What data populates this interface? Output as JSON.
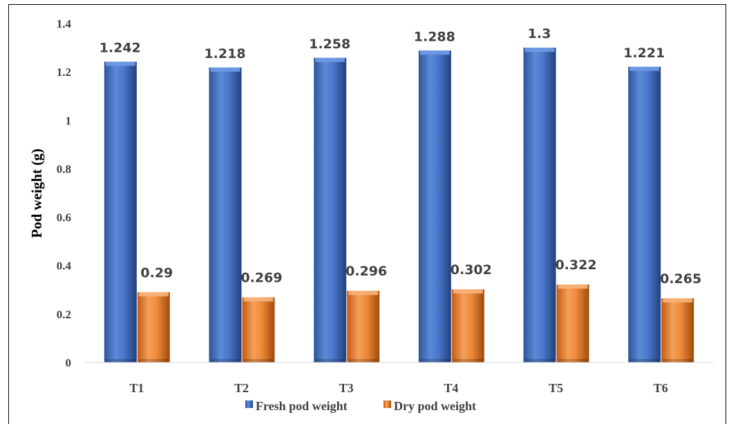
{
  "chart_data": {
    "type": "bar",
    "categories": [
      "T1",
      "T2",
      "T3",
      "T4",
      "T5",
      "T6"
    ],
    "series": [
      {
        "name": "Fresh pod weight",
        "values": [
          1.242,
          1.218,
          1.258,
          1.288,
          1.3,
          1.221
        ],
        "labels": [
          "1.242",
          "1.218",
          "1.258",
          "1.288",
          "1.3",
          "1.221"
        ],
        "color": "#4472C4"
      },
      {
        "name": "Dry pod weight",
        "values": [
          0.29,
          0.269,
          0.296,
          0.302,
          0.322,
          0.265
        ],
        "labels": [
          "0.29",
          "0.269",
          "0.296",
          "0.302",
          "0.322",
          "0.265"
        ],
        "color": "#ED7D31"
      }
    ],
    "title": "",
    "xlabel": "",
    "ylabel": "Pod weight (g)",
    "ylim": [
      0,
      1.4
    ],
    "yticks": [
      0,
      0.2,
      0.4,
      0.6,
      0.8,
      1,
      1.2,
      1.4
    ],
    "ytick_labels": [
      "0",
      "0.2",
      "0.4",
      "0.6",
      "0.8",
      "1",
      "1.2",
      "1.4"
    ],
    "grid": false,
    "legend_position": "bottom",
    "data_labels": true
  }
}
